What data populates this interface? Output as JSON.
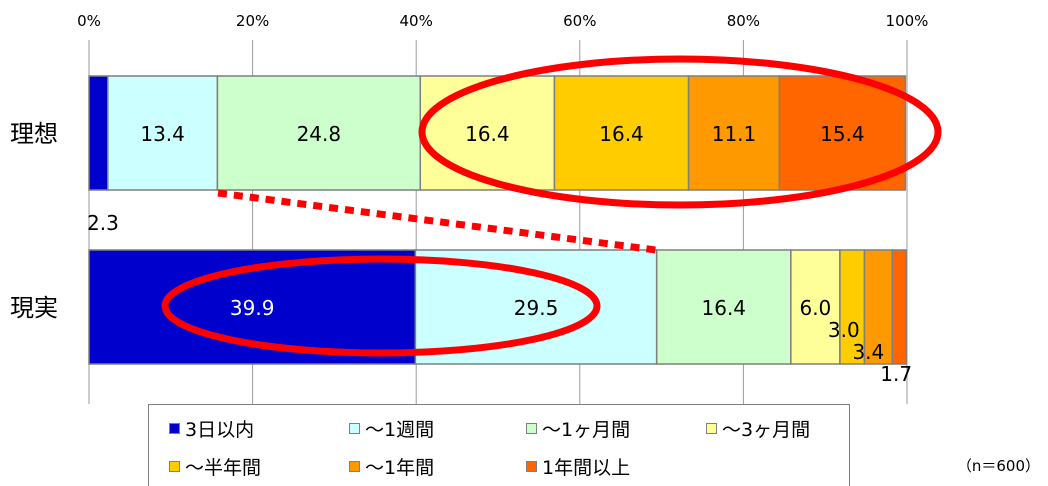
{
  "chart_data": {
    "type": "bar",
    "stacked": true,
    "orientation": "horizontal",
    "percent": true,
    "categories": [
      "理想",
      "現実"
    ],
    "xlim": [
      0,
      100
    ],
    "xticks": [
      "0%",
      "20%",
      "40%",
      "60%",
      "80%",
      "100%"
    ],
    "grid": true,
    "legend_position": "bottom",
    "series": [
      {
        "name": "3日以内",
        "color": "#0000cc",
        "values": [
          2.3,
          39.9
        ],
        "labels": [
          "2.3",
          "39.9"
        ]
      },
      {
        "name": "～1週間",
        "color": "#ccffff",
        "values": [
          13.4,
          29.5
        ],
        "labels": [
          "13.4",
          "29.5"
        ]
      },
      {
        "name": "～1ヶ月間",
        "color": "#ccffcc",
        "values": [
          24.8,
          16.4
        ],
        "labels": [
          "24.8",
          "16.4"
        ]
      },
      {
        "name": "～3ヶ月間",
        "color": "#ffff99",
        "values": [
          16.4,
          6.0
        ],
        "labels": [
          "16.4",
          "6.0"
        ]
      },
      {
        "name": "～半年間",
        "color": "#ffcc00",
        "values": [
          16.4,
          3.0
        ],
        "labels": [
          "16.4",
          "3.0"
        ]
      },
      {
        "name": "～1年間",
        "color": "#ff9900",
        "values": [
          11.1,
          3.4
        ],
        "labels": [
          "11.1",
          "3.4"
        ]
      },
      {
        "name": "1年間以上",
        "color": "#ff6600",
        "values": [
          15.4,
          1.7
        ],
        "labels": [
          "15.4",
          "1.7"
        ]
      }
    ],
    "annotation_color": "#ff0000",
    "note": "（n＝600）"
  }
}
